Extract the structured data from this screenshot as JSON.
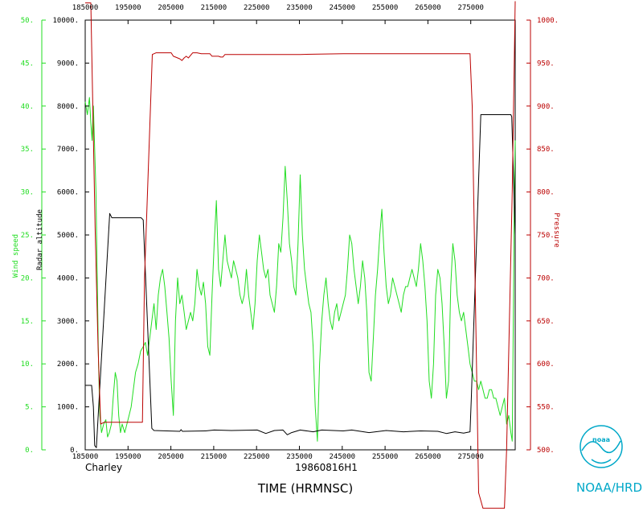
{
  "colors": {
    "wind": "#22dd22",
    "pressure": "#bb0000",
    "altitude": "#000000",
    "axis": "#000000",
    "noaa": "#00a8c8"
  },
  "labels": {
    "storm": "Charley",
    "flight": "19860816H1",
    "xlabel": "TIME (HRMNSC)",
    "wind_axis": "Wind speed",
    "alt_axis": "Radar altitude",
    "pressure_axis": "Pressure",
    "agency": "NOAA/HRD",
    "logo_text": "noaa"
  },
  "chart_data": {
    "type": "line",
    "x_ticks": [
      "185000",
      "195000",
      "205000",
      "215000",
      "225000",
      "235000",
      "245000",
      "255000",
      "265000",
      "275000"
    ],
    "top_x_ticks": [
      "185000",
      "195000",
      "205000",
      "215000",
      "225000",
      "235000",
      "245000",
      "255000",
      "265000",
      "275000"
    ],
    "xlim": [
      0,
      100
    ],
    "wind_ticks": [
      "0.",
      "5.",
      "10.",
      "15.",
      "20.",
      "25.",
      "30.",
      "35.",
      "40.",
      "45.",
      "50."
    ],
    "wind_ylim": [
      0,
      50
    ],
    "alt_ticks": [
      "0.",
      "1000.",
      "2000.",
      "3000.",
      "4000.",
      "5000.",
      "6000.",
      "7000.",
      "8000.",
      "9000.",
      "10000."
    ],
    "alt_ylim": [
      0,
      10000
    ],
    "pressure_ticks": [
      "500.",
      "550.",
      "600.",
      "650.",
      "700.",
      "750.",
      "800.",
      "850.",
      "900.",
      "950.",
      "1000."
    ],
    "pressure_ylim": [
      500,
      1000
    ],
    "series": [
      {
        "name": "Wind speed",
        "axis": "wind",
        "points": [
          [
            0,
            40.5
          ],
          [
            0.5,
            39
          ],
          [
            1,
            41
          ],
          [
            1.3,
            38
          ],
          [
            1.6,
            36
          ],
          [
            1.9,
            40
          ],
          [
            2.2,
            35
          ],
          [
            2.5,
            30
          ],
          [
            2.8,
            20
          ],
          [
            3.1,
            10
          ],
          [
            3.4,
            4
          ],
          [
            3.8,
            2
          ],
          [
            4.3,
            3
          ],
          [
            4.8,
            3.5
          ],
          [
            5.2,
            1.5
          ],
          [
            5.6,
            2
          ],
          [
            6.1,
            3
          ],
          [
            6.5,
            6
          ],
          [
            7,
            9
          ],
          [
            7.4,
            8
          ],
          [
            7.8,
            4
          ],
          [
            8.2,
            2
          ],
          [
            8.6,
            3
          ],
          [
            9.2,
            2
          ],
          [
            9.7,
            3
          ],
          [
            10.2,
            4
          ],
          [
            10.7,
            5
          ],
          [
            11.2,
            7
          ],
          [
            11.7,
            9
          ],
          [
            12.3,
            10
          ],
          [
            12.9,
            11.5
          ],
          [
            13.5,
            12
          ],
          [
            14,
            12.5
          ],
          [
            14.5,
            11
          ],
          [
            15,
            13
          ],
          [
            15.5,
            15
          ],
          [
            16,
            17
          ],
          [
            16.5,
            14
          ],
          [
            17,
            18
          ],
          [
            17.5,
            20
          ],
          [
            18,
            21
          ],
          [
            18.5,
            19
          ],
          [
            19,
            16
          ],
          [
            19.5,
            13
          ],
          [
            20,
            8
          ],
          [
            20.5,
            4
          ],
          [
            21,
            15
          ],
          [
            21.5,
            20
          ],
          [
            22,
            17
          ],
          [
            22.5,
            18
          ],
          [
            23,
            16
          ],
          [
            23.5,
            14
          ],
          [
            24,
            15
          ],
          [
            24.5,
            16
          ],
          [
            25,
            15
          ],
          [
            25.5,
            17
          ],
          [
            26,
            21
          ],
          [
            26.5,
            19
          ],
          [
            27,
            18
          ],
          [
            27.5,
            19.5
          ],
          [
            28,
            17
          ],
          [
            28.5,
            12
          ],
          [
            29,
            11
          ],
          [
            29.5,
            18
          ],
          [
            30,
            24
          ],
          [
            30.5,
            29
          ],
          [
            31,
            21
          ],
          [
            31.5,
            19
          ],
          [
            32,
            22
          ],
          [
            32.5,
            25
          ],
          [
            33,
            22
          ],
          [
            33.5,
            21
          ],
          [
            34,
            20
          ],
          [
            34.5,
            22
          ],
          [
            35,
            21
          ],
          [
            35.5,
            20
          ],
          [
            36,
            18
          ],
          [
            36.5,
            17
          ],
          [
            37,
            18
          ],
          [
            37.5,
            21
          ],
          [
            38,
            18
          ],
          [
            38.5,
            16
          ],
          [
            39,
            14
          ],
          [
            39.5,
            17
          ],
          [
            40,
            22
          ],
          [
            40.5,
            25
          ],
          [
            41,
            23
          ],
          [
            41.5,
            21
          ],
          [
            42,
            20
          ],
          [
            42.5,
            21
          ],
          [
            43,
            18
          ],
          [
            43.5,
            17
          ],
          [
            44,
            16
          ],
          [
            44.5,
            19
          ],
          [
            45,
            24
          ],
          [
            45.5,
            23
          ],
          [
            46,
            27
          ],
          [
            46.5,
            33
          ],
          [
            47,
            29
          ],
          [
            47.5,
            24
          ],
          [
            48,
            22
          ],
          [
            48.5,
            19
          ],
          [
            49,
            18
          ],
          [
            49.5,
            24
          ],
          [
            50,
            32
          ],
          [
            50.5,
            25
          ],
          [
            51,
            21
          ],
          [
            51.5,
            19
          ],
          [
            52,
            17
          ],
          [
            52.5,
            16
          ],
          [
            53,
            12
          ],
          [
            53.5,
            5
          ],
          [
            54,
            1
          ],
          [
            54.5,
            10
          ],
          [
            55,
            15
          ],
          [
            55.5,
            18
          ],
          [
            56,
            20
          ],
          [
            56.5,
            17
          ],
          [
            57,
            15
          ],
          [
            57.5,
            14
          ],
          [
            58,
            16
          ],
          [
            58.5,
            17
          ],
          [
            59,
            15
          ],
          [
            59.5,
            16
          ],
          [
            60,
            17
          ],
          [
            60.5,
            18
          ],
          [
            61,
            21
          ],
          [
            61.5,
            25
          ],
          [
            62,
            24
          ],
          [
            62.5,
            21
          ],
          [
            63,
            19
          ],
          [
            63.5,
            17
          ],
          [
            64,
            19
          ],
          [
            64.5,
            22
          ],
          [
            65,
            20
          ],
          [
            65.5,
            16
          ],
          [
            66,
            9
          ],
          [
            66.5,
            8
          ],
          [
            67,
            13
          ],
          [
            67.5,
            18
          ],
          [
            68,
            21
          ],
          [
            68.5,
            25
          ],
          [
            69,
            28
          ],
          [
            69.5,
            23
          ],
          [
            70,
            19
          ],
          [
            70.5,
            17
          ],
          [
            71,
            18
          ],
          [
            71.5,
            20
          ],
          [
            72,
            19
          ],
          [
            72.5,
            18
          ],
          [
            73,
            17
          ],
          [
            73.5,
            16
          ],
          [
            74,
            18
          ],
          [
            74.5,
            19
          ],
          [
            75,
            19
          ],
          [
            75.5,
            20
          ],
          [
            76,
            21
          ],
          [
            76.5,
            20
          ],
          [
            77,
            19
          ],
          [
            77.5,
            21
          ],
          [
            78,
            24
          ],
          [
            78.5,
            22
          ],
          [
            79,
            19
          ],
          [
            79.5,
            15
          ],
          [
            80,
            8
          ],
          [
            80.5,
            6
          ],
          [
            81,
            10
          ],
          [
            81.5,
            18
          ],
          [
            82,
            21
          ],
          [
            82.5,
            20
          ],
          [
            83,
            17
          ],
          [
            83.5,
            12
          ],
          [
            84,
            6
          ],
          [
            84.5,
            8
          ],
          [
            85,
            19
          ],
          [
            85.5,
            24
          ],
          [
            86,
            22
          ],
          [
            86.5,
            18
          ],
          [
            87,
            16
          ],
          [
            87.5,
            15
          ],
          [
            88,
            16
          ],
          [
            88.5,
            14
          ],
          [
            89,
            12
          ],
          [
            89.5,
            10
          ],
          [
            90,
            9
          ],
          [
            90.5,
            8
          ],
          [
            91,
            8
          ],
          [
            91.5,
            7
          ],
          [
            92,
            8
          ],
          [
            92.5,
            7
          ],
          [
            93,
            6
          ],
          [
            93.5,
            6
          ],
          [
            94,
            7
          ],
          [
            94.5,
            7
          ],
          [
            95,
            6
          ],
          [
            95.5,
            6
          ],
          [
            96,
            5
          ],
          [
            96.5,
            4
          ],
          [
            97,
            5
          ],
          [
            97.5,
            6
          ],
          [
            98,
            3
          ],
          [
            98.5,
            4
          ],
          [
            99,
            2
          ],
          [
            99.3,
            1
          ],
          [
            99.6,
            18
          ],
          [
            99.8,
            30
          ],
          [
            100,
            36
          ]
        ]
      },
      {
        "name": "Radar altitude",
        "axis": "alt",
        "points": [
          [
            0,
            1500
          ],
          [
            1.5,
            1500
          ],
          [
            1.9,
            1000
          ],
          [
            2.2,
            100
          ],
          [
            2.6,
            50
          ],
          [
            5.7,
            5500
          ],
          [
            6.2,
            5400
          ],
          [
            13,
            5400
          ],
          [
            13.5,
            5350
          ],
          [
            15.5,
            500
          ],
          [
            16,
            450
          ],
          [
            22,
            430
          ],
          [
            22.3,
            470
          ],
          [
            22.6,
            430
          ],
          [
            28,
            440
          ],
          [
            30,
            460
          ],
          [
            34,
            450
          ],
          [
            40,
            460
          ],
          [
            42,
            380
          ],
          [
            44,
            450
          ],
          [
            46,
            460
          ],
          [
            47,
            350
          ],
          [
            48,
            400
          ],
          [
            50,
            460
          ],
          [
            53,
            420
          ],
          [
            55,
            460
          ],
          [
            60,
            440
          ],
          [
            62,
            460
          ],
          [
            66,
            400
          ],
          [
            70,
            450
          ],
          [
            74,
            420
          ],
          [
            78,
            440
          ],
          [
            82,
            430
          ],
          [
            84,
            380
          ],
          [
            86,
            420
          ],
          [
            88,
            390
          ],
          [
            89.5,
            420
          ],
          [
            89.8,
            1200
          ],
          [
            92,
            7800
          ],
          [
            99,
            7800
          ],
          [
            99.2,
            7750
          ],
          [
            100,
            5000
          ]
        ]
      },
      {
        "name": "Pressure",
        "axis": "pressure",
        "points": [
          [
            0,
            1020
          ],
          [
            1.3,
            1020
          ],
          [
            2.3,
            760
          ],
          [
            3,
            620
          ],
          [
            3.6,
            530
          ],
          [
            4.4,
            532
          ],
          [
            11,
            532
          ],
          [
            13.3,
            532
          ],
          [
            13.8,
            700
          ],
          [
            15.6,
            960
          ],
          [
            16.5,
            962
          ],
          [
            20,
            962
          ],
          [
            20.5,
            958
          ],
          [
            21,
            957
          ],
          [
            22,
            955
          ],
          [
            22.5,
            953
          ],
          [
            23,
            956
          ],
          [
            23.5,
            958
          ],
          [
            24,
            956
          ],
          [
            25,
            962
          ],
          [
            26,
            962
          ],
          [
            27,
            961
          ],
          [
            29,
            961
          ],
          [
            29.5,
            958
          ],
          [
            31,
            958
          ],
          [
            31.5,
            957
          ],
          [
            32,
            957
          ],
          [
            32.5,
            960
          ],
          [
            40,
            960
          ],
          [
            50,
            960
          ],
          [
            60,
            961
          ],
          [
            70,
            961
          ],
          [
            80,
            961
          ],
          [
            89.5,
            961
          ],
          [
            90,
            900
          ],
          [
            91.5,
            450
          ],
          [
            92.5,
            432
          ],
          [
            94,
            432
          ],
          [
            97.5,
            432
          ],
          [
            98,
            500
          ],
          [
            99.3,
            800
          ],
          [
            100,
            1022
          ]
        ]
      }
    ],
    "grid": false
  }
}
